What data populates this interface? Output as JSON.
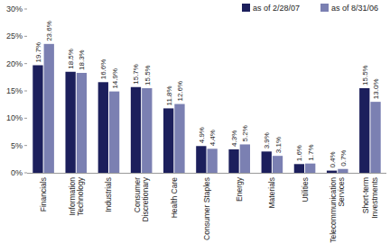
{
  "chart_data": {
    "type": "bar",
    "categories": [
      "Financials",
      "Information Technology",
      "Industrials",
      "Consumer Discretionary",
      "Health Care",
      "Consumer Staples",
      "Energy",
      "Materials",
      "Utilities",
      "Telecommunication Services",
      "Short-term Investments"
    ],
    "series": [
      {
        "name": "as of 2/28/07",
        "color": "#1c1f5c",
        "values": [
          19.7,
          18.5,
          16.6,
          15.7,
          11.8,
          4.9,
          4.3,
          3.9,
          1.6,
          0.4,
          15.5
        ],
        "value_labels": [
          "19.7%",
          "18.5%",
          "16.6%",
          "15.7%",
          "11.8%",
          "4.9%",
          "4.3%",
          "3.9%",
          "1.6%",
          "0.4%",
          "15.5%"
        ]
      },
      {
        "name": "as of 8/31/06",
        "color": "#7b80b2",
        "values": [
          23.6,
          18.3,
          14.9,
          15.5,
          12.6,
          4.4,
          5.2,
          3.1,
          1.7,
          0.7,
          13.0
        ],
        "value_labels": [
          "23.6%",
          "18.3%",
          "14.9%",
          "15.5%",
          "12.6%",
          "4.4%",
          "5.2%",
          "3.1%",
          "1.7%",
          "0.7%",
          "13.0%"
        ]
      }
    ],
    "ylim": [
      0,
      30
    ],
    "yticks": [
      {
        "value": 0,
        "label": "0%"
      },
      {
        "value": 5,
        "label": "5%"
      },
      {
        "value": 10,
        "label": "10%"
      },
      {
        "value": 15,
        "label": "15%"
      },
      {
        "value": 20,
        "label": "20%"
      },
      {
        "value": 25,
        "label": "25%"
      },
      {
        "value": 30,
        "label": "30%"
      }
    ],
    "grid": false,
    "legend": "top-right",
    "data_labels": true
  }
}
